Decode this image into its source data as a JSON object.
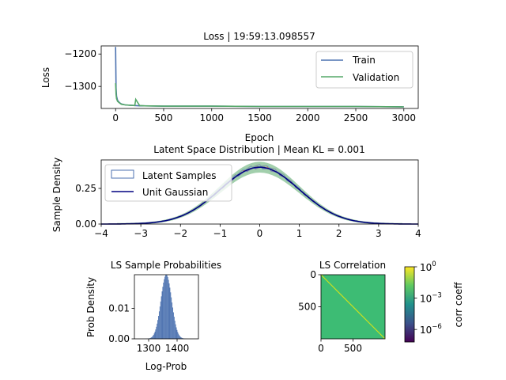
{
  "chart_data": [
    {
      "type": "line",
      "title": "Loss | 19:59:13.098557",
      "xlabel": "Epoch",
      "ylabel": "Loss",
      "xlim": [
        -150,
        3150
      ],
      "ylim": [
        -1368,
        -1175
      ],
      "xticks": [
        0,
        500,
        1000,
        1500,
        2000,
        2500,
        3000
      ],
      "yticks": [
        -1200,
        -1300
      ],
      "legend_position": "top-right",
      "series": [
        {
          "name": "Train",
          "color": "#4c72b0",
          "x": [
            0,
            5,
            10,
            20,
            40,
            60,
            100,
            150,
            200,
            250,
            300,
            500,
            1000,
            1500,
            2000,
            2500,
            3000
          ],
          "y": [
            -1178,
            -1305,
            -1330,
            -1343,
            -1350,
            -1354,
            -1357,
            -1358,
            -1359,
            -1360,
            -1360,
            -1361,
            -1361,
            -1362,
            -1362,
            -1362,
            -1363
          ]
        },
        {
          "name": "Validation",
          "color": "#55a868",
          "x": [
            0,
            5,
            10,
            20,
            40,
            60,
            100,
            150,
            200,
            210,
            230,
            250,
            300,
            500,
            1000,
            1500,
            2000,
            2500,
            3000
          ],
          "y": [
            -1290,
            -1325,
            -1338,
            -1346,
            -1351,
            -1355,
            -1357,
            -1358,
            -1359,
            -1340,
            -1350,
            -1359,
            -1360,
            -1361,
            -1361,
            -1362,
            -1362,
            -1362,
            -1363
          ]
        }
      ]
    },
    {
      "type": "area",
      "title": "Latent Space Distribution | Mean KL = 0.001",
      "xlabel": "",
      "ylabel": "Sample Density",
      "xlim": [
        -4,
        4
      ],
      "ylim": [
        0,
        0.45
      ],
      "xticks": [
        -4,
        -3,
        -2,
        -1,
        0,
        1,
        2,
        3,
        4
      ],
      "yticks": [
        0.0,
        0.25
      ],
      "ytick_labels": [
        "0.00",
        "0.25"
      ],
      "legend_position": "top-left",
      "series": [
        {
          "name": "Latent Samples",
          "kind": "histogram",
          "color": "#4c72b0"
        },
        {
          "name": "Unit Gaussian",
          "kind": "line",
          "color": "#000080",
          "mean": 0,
          "std": 1
        }
      ]
    },
    {
      "type": "bar",
      "title": "LS Sample Probabilities",
      "xlabel": "Log-Prob",
      "ylabel": "Prob Density",
      "xlim": [
        1250,
        1475
      ],
      "ylim": [
        0,
        0.021
      ],
      "xticks": [
        1300,
        1400
      ],
      "yticks": [
        0.0,
        0.01
      ],
      "ytick_labels": [
        "0.00",
        "0.01"
      ],
      "color": "#4c72b0",
      "histogram": {
        "mean": 1362,
        "std": 19,
        "peak_density": 0.021
      }
    },
    {
      "type": "heatmap",
      "title": "LS Correlation",
      "xlim": [
        0,
        1000
      ],
      "ylim": [
        0,
        1000
      ],
      "xticks": [
        0,
        500
      ],
      "yticks": [
        0,
        500
      ],
      "diagonal_color": "#cde11d",
      "offdiag_color": "#3dbc74",
      "colorbar": {
        "label": "corr coeff",
        "scale": "log",
        "tick_exponents": [
          0,
          -3,
          -6
        ],
        "tick_base": "10",
        "colors": [
          "#fde725",
          "#5ec962",
          "#21918c",
          "#3b528b",
          "#440154"
        ]
      }
    }
  ]
}
